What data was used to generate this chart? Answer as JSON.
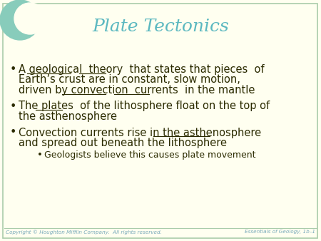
{
  "title": "Plate Tectonics",
  "title_color": "#5BB8C0",
  "bg_color": "#FFFFF0",
  "border_color": "#AACCAA",
  "text_color": "#2B2B00",
  "footer_left": "Copyright © Houghton Mifflin Company.  All rights reserved.",
  "footer_right": "Essentials of Geology, 1b–1",
  "footer_color": "#7AAABB",
  "crescent_color": "#88CCBB",
  "font_size_title": 18,
  "font_size_body": 10.5,
  "font_size_sub": 9.0,
  "font_size_footer": 5.2,
  "b1_line1": "A geological  theory  that states that pieces  of",
  "b1_line2": "Earth’s crust are in constant, slow motion,",
  "b1_line3": "driven by convection  currents  in the mantle",
  "b2_line1": "The plates  of the lithosphere float on the top of",
  "b2_line2": "the asthenosphere",
  "b3_line1": "Convection currents rise in the asthenosphere",
  "b3_line2": "and spread out beneath the lithosphere",
  "b4_line1": "Geologists believe this causes plate movement"
}
